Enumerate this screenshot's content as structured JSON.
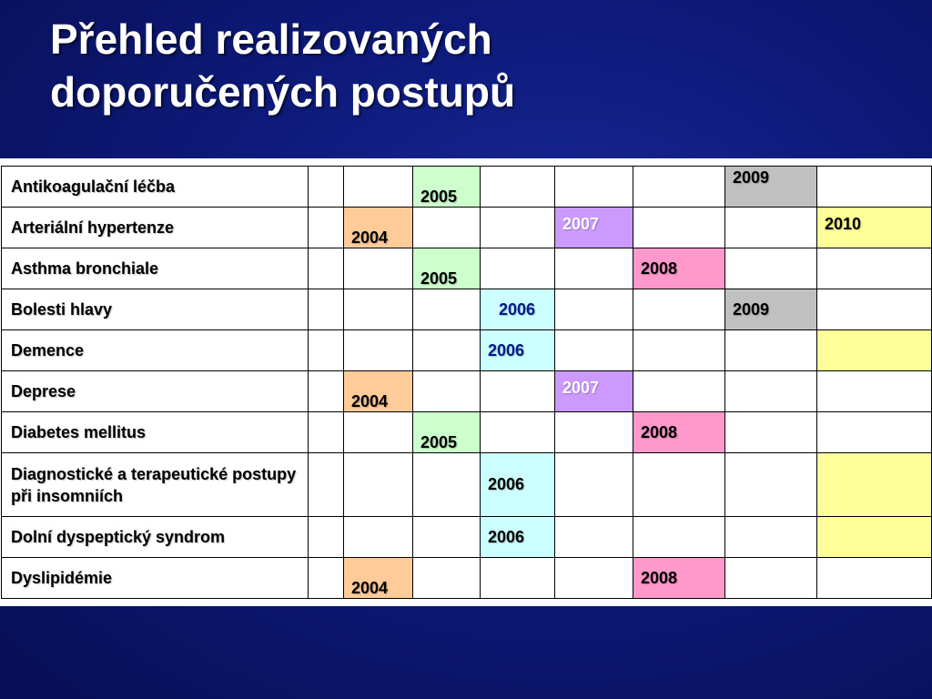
{
  "title": {
    "line1": "Přehled realizovaných",
    "line2": "doporučených postupů"
  },
  "colors": {
    "orange": "#ffcc99",
    "green": "#ccffcc",
    "cyan": "#ccffff",
    "purple": "#cc99ff",
    "pink": "#ff99cc",
    "gray": "#c0c0c0",
    "yellow": "#ffff99"
  },
  "table": {
    "rows": [
      {
        "name": "Antikoagulační léčba",
        "cells": [
          {
            "text": ""
          },
          {
            "text": ""
          },
          {
            "text": "2005",
            "color": "green",
            "pos": "low"
          },
          {
            "text": ""
          },
          {
            "text": ""
          },
          {
            "text": ""
          },
          {
            "text": "2009",
            "color": "gray",
            "pos": "top"
          },
          {
            "text": ""
          }
        ]
      },
      {
        "name": "Arteriální hypertenze",
        "cells": [
          {
            "text": ""
          },
          {
            "text": "2004",
            "color": "orange",
            "pos": "low"
          },
          {
            "text": ""
          },
          {
            "text": ""
          },
          {
            "text": "2007",
            "color": "purple",
            "pos": "top",
            "fg": "#ffffff"
          },
          {
            "text": ""
          },
          {
            "text": ""
          },
          {
            "text": "2010",
            "color": "yellow",
            "pos": "top"
          }
        ]
      },
      {
        "name": "Asthma bronchiale",
        "cells": [
          {
            "text": ""
          },
          {
            "text": ""
          },
          {
            "text": "2005",
            "color": "green",
            "pos": "low"
          },
          {
            "text": ""
          },
          {
            "text": ""
          },
          {
            "text": "2008",
            "color": "pink",
            "pos": "mid"
          },
          {
            "text": ""
          },
          {
            "text": ""
          }
        ]
      },
      {
        "name": "Bolesti hlavy",
        "cells": [
          {
            "text": ""
          },
          {
            "text": ""
          },
          {
            "text": ""
          },
          {
            "text": "2006",
            "color": "cyan",
            "pos": "mid",
            "fg": "#001a8c",
            "indent": true
          },
          {
            "text": ""
          },
          {
            "text": ""
          },
          {
            "text": "2009",
            "color": "gray",
            "pos": "mid"
          },
          {
            "text": ""
          }
        ]
      },
      {
        "name": "Demence",
        "cells": [
          {
            "text": ""
          },
          {
            "text": ""
          },
          {
            "text": ""
          },
          {
            "text": "2006",
            "color": "cyan",
            "pos": "mid",
            "fg": "#001a8c"
          },
          {
            "text": ""
          },
          {
            "text": ""
          },
          {
            "text": ""
          },
          {
            "text": "",
            "color": "yellow"
          }
        ]
      },
      {
        "name": "Deprese",
        "cells": [
          {
            "text": ""
          },
          {
            "text": "2004",
            "color": "orange",
            "pos": "low"
          },
          {
            "text": ""
          },
          {
            "text": ""
          },
          {
            "text": "2007",
            "color": "purple",
            "pos": "top",
            "fg": "#ffffff"
          },
          {
            "text": ""
          },
          {
            "text": ""
          },
          {
            "text": ""
          }
        ]
      },
      {
        "name": "Diabetes mellitus",
        "cells": [
          {
            "text": ""
          },
          {
            "text": ""
          },
          {
            "text": "2005",
            "color": "green",
            "pos": "low"
          },
          {
            "text": ""
          },
          {
            "text": ""
          },
          {
            "text": "2008",
            "color": "pink",
            "pos": "mid"
          },
          {
            "text": ""
          },
          {
            "text": ""
          }
        ]
      },
      {
        "name": "Diagnostické a terapeutické postupy při insomniích",
        "wrap": true,
        "cells": [
          {
            "text": ""
          },
          {
            "text": ""
          },
          {
            "text": ""
          },
          {
            "text": "2006",
            "color": "cyan",
            "pos": "mid"
          },
          {
            "text": ""
          },
          {
            "text": ""
          },
          {
            "text": ""
          },
          {
            "text": "",
            "color": "yellow"
          }
        ]
      },
      {
        "name": "Dolní dyspeptický syndrom",
        "cells": [
          {
            "text": ""
          },
          {
            "text": ""
          },
          {
            "text": ""
          },
          {
            "text": "2006",
            "color": "cyan",
            "pos": "mid"
          },
          {
            "text": ""
          },
          {
            "text": ""
          },
          {
            "text": ""
          },
          {
            "text": "",
            "color": "yellow"
          }
        ]
      },
      {
        "name": "Dyslipidémie",
        "cells": [
          {
            "text": ""
          },
          {
            "text": "2004",
            "color": "orange",
            "pos": "low"
          },
          {
            "text": ""
          },
          {
            "text": ""
          },
          {
            "text": ""
          },
          {
            "text": "2008",
            "color": "pink",
            "pos": "mid"
          },
          {
            "text": ""
          },
          {
            "text": ""
          }
        ]
      }
    ]
  }
}
